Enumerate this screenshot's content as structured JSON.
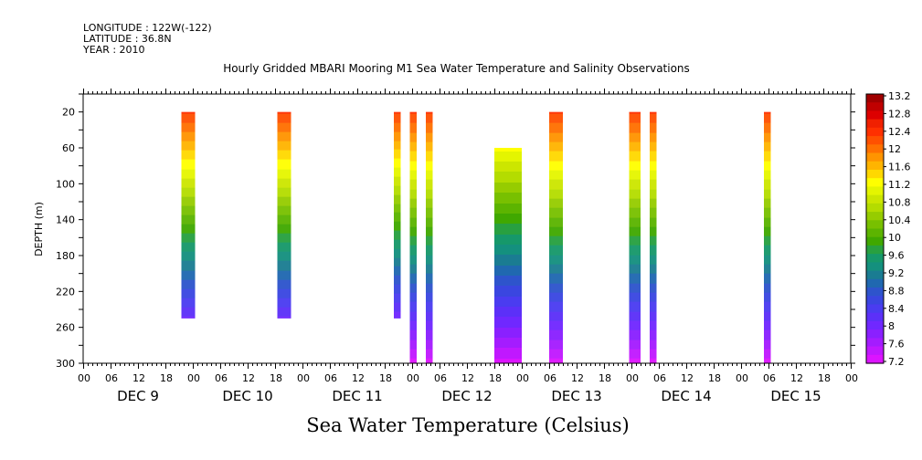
{
  "header": {
    "longitude": "LONGITUDE : 122W(-122)",
    "latitude": "LATITUDE : 36.8N",
    "year": "YEAR : 2010"
  },
  "chart_data": {
    "type": "heatmap",
    "title": "Hourly Gridded MBARI Mooring M1 Sea Water Temperature and Salinity Observations",
    "xlabel": "",
    "ylabel": "DEPTH (m)",
    "bottom_label": "Sea Water Temperature (Celsius)",
    "x_range_hours": [
      0,
      168
    ],
    "x_ticks": [
      "00",
      "06",
      "12",
      "18",
      "00",
      "06",
      "12",
      "18",
      "00",
      "06",
      "12",
      "18",
      "00",
      "06",
      "12",
      "18",
      "00",
      "06",
      "12",
      "18",
      "00",
      "06",
      "12",
      "18",
      "00",
      "06",
      "12",
      "18",
      "00"
    ],
    "day_labels": [
      "DEC  9",
      "DEC 10",
      "DEC 11",
      "DEC 12",
      "DEC 13",
      "DEC 14",
      "DEC 15"
    ],
    "y_range": [
      300,
      0
    ],
    "y_ticks": [
      20,
      60,
      100,
      140,
      180,
      220,
      260,
      300
    ],
    "colorbar": {
      "min": 7.2,
      "max": 13.2,
      "labels": [
        "13.2",
        "12.8",
        "12.4",
        "12",
        "11.6",
        "11.2",
        "10.8",
        "10.4",
        "10",
        "9.6",
        "9.2",
        "8.8",
        "8.4",
        "8",
        "7.6",
        "7.2"
      ],
      "colors": [
        "#a00000",
        "#c00000",
        "#dd0000",
        "#f02000",
        "#ff3000",
        "#ff5000",
        "#ff7000",
        "#ff9400",
        "#ffb400",
        "#ffd800",
        "#ffff00",
        "#e4f500",
        "#cce600",
        "#b4dc00",
        "#96cc00",
        "#78c000",
        "#5cb400",
        "#40a800",
        "#28a040",
        "#16986a",
        "#14907e",
        "#1a7c92",
        "#2068b0",
        "#2e54cc",
        "#3a46e0",
        "#4a3cf0",
        "#5c30f8",
        "#7028ff",
        "#8a20ff",
        "#a41cff",
        "#c018ff",
        "#dc14ff"
      ]
    },
    "profiles": [
      {
        "start_hour": 21.5,
        "end_hour": 24.5,
        "top_depth": 20,
        "bottom_depth": 250,
        "temp_top": 12.3,
        "temp_bottom": 8.1
      },
      {
        "start_hour": 42.5,
        "end_hour": 45.5,
        "top_depth": 20,
        "bottom_depth": 250,
        "temp_top": 12.3,
        "temp_bottom": 8.1
      },
      {
        "start_hour": 68.0,
        "end_hour": 69.5,
        "top_depth": 20,
        "bottom_depth": 250,
        "temp_top": 12.3,
        "temp_bottom": 8.0
      },
      {
        "start_hour": 71.5,
        "end_hour": 73.0,
        "top_depth": 20,
        "bottom_depth": 300,
        "temp_top": 12.3,
        "temp_bottom": 7.3
      },
      {
        "start_hour": 75.0,
        "end_hour": 76.5,
        "top_depth": 20,
        "bottom_depth": 300,
        "temp_top": 12.3,
        "temp_bottom": 7.3
      },
      {
        "start_hour": 90.0,
        "end_hour": 96.0,
        "top_depth": 60,
        "bottom_depth": 300,
        "temp_top": 11.2,
        "temp_bottom": 7.3
      },
      {
        "start_hour": 102.0,
        "end_hour": 105.0,
        "top_depth": 20,
        "bottom_depth": 300,
        "temp_top": 12.3,
        "temp_bottom": 7.3
      },
      {
        "start_hour": 119.5,
        "end_hour": 122.0,
        "top_depth": 20,
        "bottom_depth": 300,
        "temp_top": 12.3,
        "temp_bottom": 7.3
      },
      {
        "start_hour": 124.0,
        "end_hour": 125.5,
        "top_depth": 20,
        "bottom_depth": 300,
        "temp_top": 12.3,
        "temp_bottom": 7.3
      },
      {
        "start_hour": 149.0,
        "end_hour": 150.5,
        "top_depth": 20,
        "bottom_depth": 300,
        "temp_top": 12.3,
        "temp_bottom": 7.3
      }
    ]
  }
}
